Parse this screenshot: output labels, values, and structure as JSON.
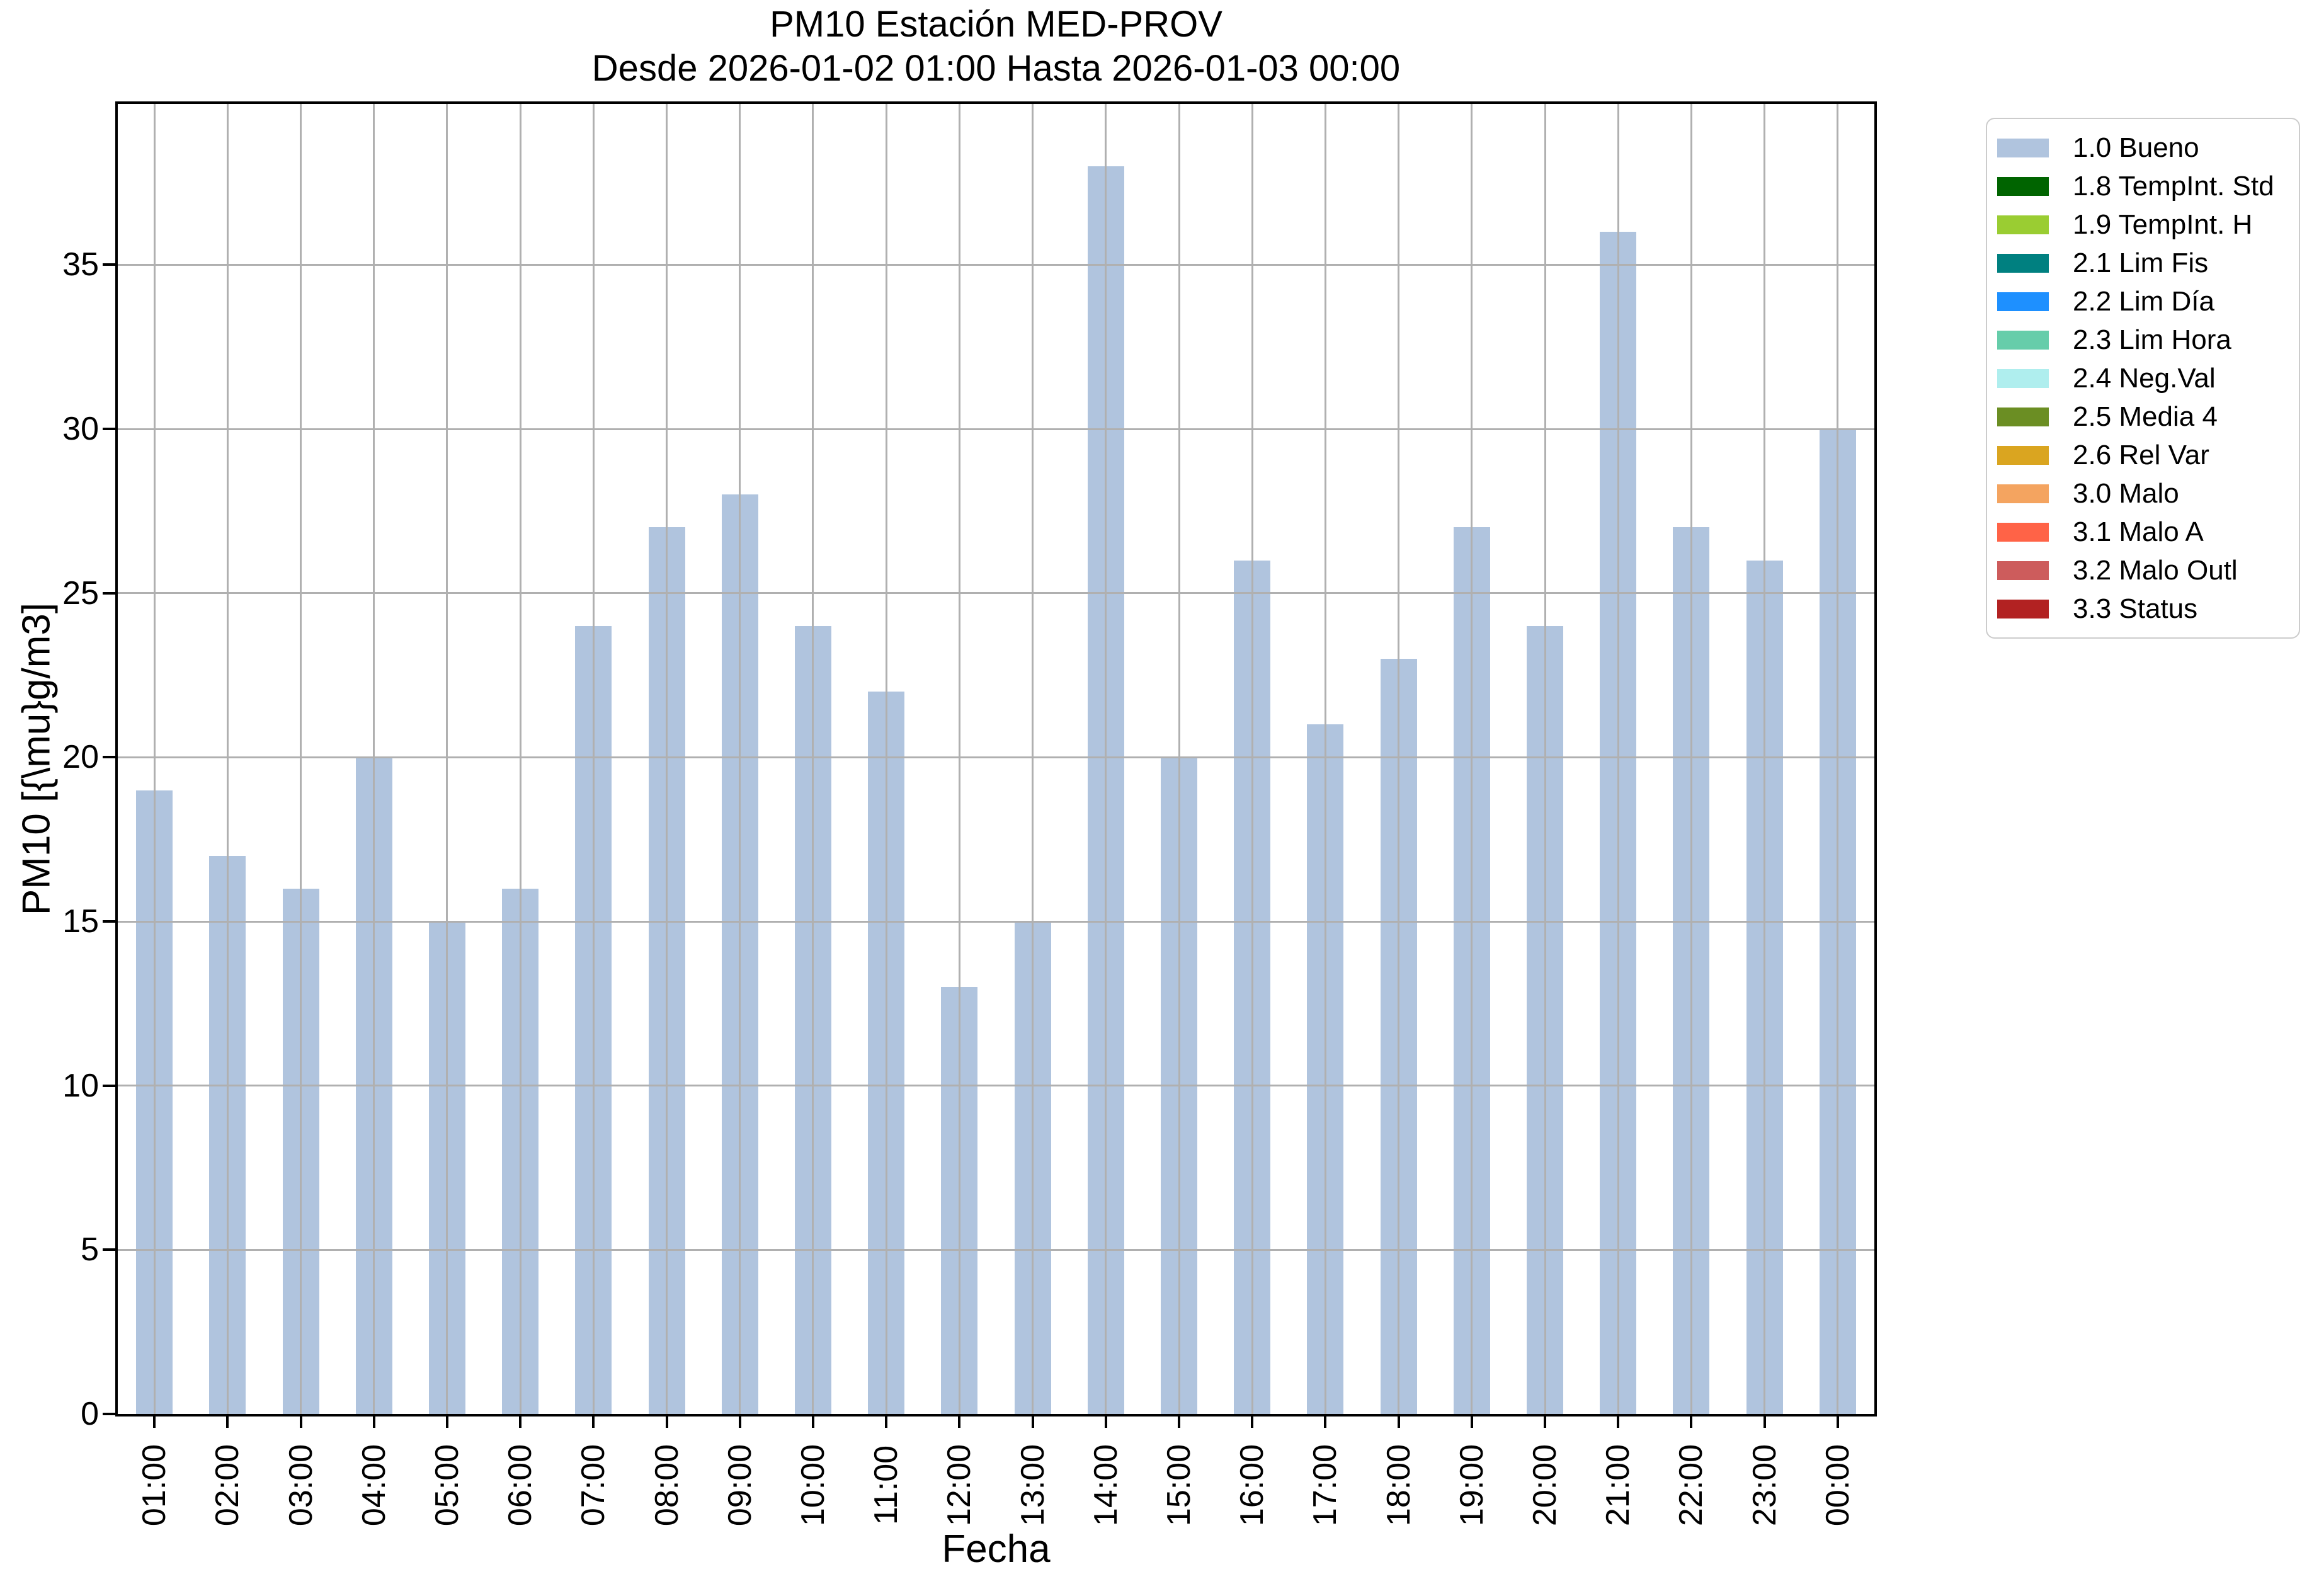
{
  "chart_data": {
    "type": "bar",
    "title_line1": "PM10 Estación MED-PROV",
    "title_line2": "Desde 2026-01-02 01:00 Hasta 2026-01-03 00:00",
    "xlabel": "Fecha",
    "ylabel": "PM10 [{\\mu}g/m3]",
    "categories": [
      "01:00",
      "02:00",
      "03:00",
      "04:00",
      "05:00",
      "06:00",
      "07:00",
      "08:00",
      "09:00",
      "10:00",
      "11:00",
      "12:00",
      "13:00",
      "14:00",
      "15:00",
      "16:00",
      "17:00",
      "18:00",
      "19:00",
      "20:00",
      "21:00",
      "22:00",
      "23:00",
      "00:00"
    ],
    "series": [
      {
        "name": "1.0 Bueno",
        "values": [
          19,
          17,
          16,
          20,
          15,
          16,
          24,
          27,
          28,
          24,
          22,
          13,
          15,
          38,
          20,
          26,
          21,
          23,
          27,
          24,
          36,
          27,
          26,
          30
        ]
      }
    ],
    "bar_color": "#b0c4de",
    "ylim": [
      0,
      39.9
    ],
    "yticks": [
      0,
      5,
      10,
      15,
      20,
      25,
      30,
      35
    ],
    "grid": true,
    "grid_color": "#b0b0b0",
    "legend_position": "outside-top-right",
    "legend": [
      {
        "label": "1.0 Bueno",
        "color": "#b0c4de"
      },
      {
        "label": "1.8 TempInt. Std",
        "color": "#006400"
      },
      {
        "label": "1.9 TempInt. H",
        "color": "#9acd32"
      },
      {
        "label": "2.1 Lim Fis",
        "color": "#008080"
      },
      {
        "label": "2.2 Lim Día",
        "color": "#1e90ff"
      },
      {
        "label": "2.3 Lim Hora",
        "color": "#66cdaa"
      },
      {
        "label": "2.4 Neg.Val",
        "color": "#afeeee"
      },
      {
        "label": "2.5 Media 4",
        "color": "#6b8e23"
      },
      {
        "label": "2.6 Rel Var",
        "color": "#daa520"
      },
      {
        "label": "3.0 Malo",
        "color": "#f4a460"
      },
      {
        "label": "3.1 Malo A",
        "color": "#ff6347"
      },
      {
        "label": "3.2 Malo Outl",
        "color": "#cd5c5c"
      },
      {
        "label": "3.3 Status",
        "color": "#b22222"
      }
    ]
  },
  "colors": {
    "background": "#ffffff",
    "spine": "#000000",
    "grid": "#b0b0b0",
    "legend_border": "#cccccc",
    "text": "#000000"
  }
}
